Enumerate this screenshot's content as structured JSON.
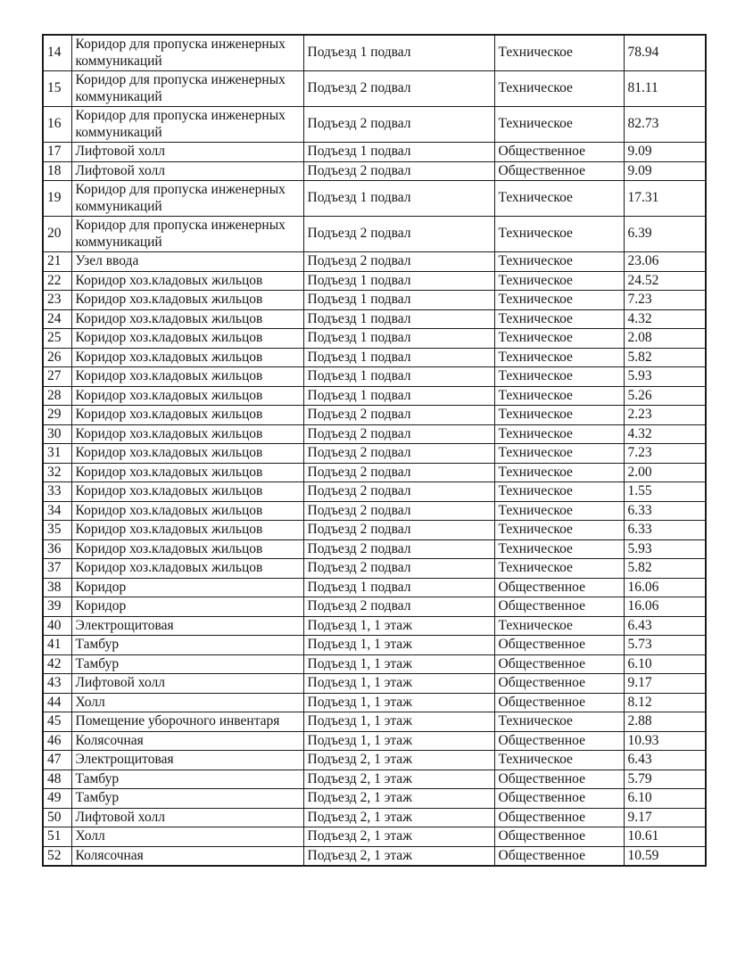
{
  "page": {
    "background": "#ffffff",
    "border_color": "#1b1b1b",
    "text_color": "#151515"
  },
  "table": {
    "rows": [
      [
        "14",
        "Коридор для пропуска инженерных коммуникаций",
        "Подъезд 1 подвал",
        "Техническое",
        "78.94"
      ],
      [
        "15",
        "Коридор для пропуска инженерных коммуникаций",
        "Подъезд 2 подвал",
        "Техническое",
        "81.11"
      ],
      [
        "16",
        "Коридор для пропуска инженерных коммуникаций",
        "Подъезд 2 подвал",
        "Техническое",
        "82.73"
      ],
      [
        "17",
        "Лифтовой холл",
        "Подъезд 1 подвал",
        "Общественное",
        "9.09"
      ],
      [
        "18",
        "Лифтовой холл",
        "Подъезд 2 подвал",
        "Общественное",
        "9.09"
      ],
      [
        "19",
        "Коридор для пропуска инженерных коммуникаций",
        "Подъезд 1 подвал",
        "Техническое",
        "17.31"
      ],
      [
        "20",
        "Коридор для пропуска инженерных коммуникаций",
        "Подъезд 2 подвал",
        "Техническое",
        "6.39"
      ],
      [
        "21",
        "Узел ввода",
        "Подъезд 2 подвал",
        "Техническое",
        "23.06"
      ],
      [
        "22",
        "Коридор хоз.кладовых жильцов",
        "Подъезд 1 подвал",
        "Техническое",
        "24.52"
      ],
      [
        "23",
        "Коридор хоз.кладовых жильцов",
        "Подъезд 1 подвал",
        "Техническое",
        "7.23"
      ],
      [
        "24",
        "Коридор хоз.кладовых жильцов",
        "Подъезд 1 подвал",
        "Техническое",
        "4.32"
      ],
      [
        "25",
        "Коридор хоз.кладовых жильцов",
        "Подъезд 1 подвал",
        "Техническое",
        "2.08"
      ],
      [
        "26",
        "Коридор хоз.кладовых жильцов",
        "Подъезд 1 подвал",
        "Техническое",
        "5.82"
      ],
      [
        "27",
        "Коридор хоз.кладовых жильцов",
        "Подъезд 1 подвал",
        "Техническое",
        "5.93"
      ],
      [
        "28",
        "Коридор хоз.кладовых жильцов",
        "Подъезд 1 подвал",
        "Техническое",
        "5.26"
      ],
      [
        "29",
        "Коридор хоз.кладовых жильцов",
        "Подъезд 2 подвал",
        "Техническое",
        "2.23"
      ],
      [
        "30",
        "Коридор хоз.кладовых жильцов",
        "Подъезд 2 подвал",
        "Техническое",
        "4.32"
      ],
      [
        "31",
        "Коридор хоз.кладовых жильцов",
        "Подъезд 2 подвал",
        "Техническое",
        "7.23"
      ],
      [
        "32",
        "Коридор хоз.кладовых жильцов",
        "Подъезд 2 подвал",
        "Техническое",
        "2.00"
      ],
      [
        "33",
        "Коридор хоз.кладовых жильцов",
        "Подъезд 2 подвал",
        "Техническое",
        "1.55"
      ],
      [
        "34",
        "Коридор хоз.кладовых жильцов",
        "Подъезд 2 подвал",
        "Техническое",
        "6.33"
      ],
      [
        "35",
        "Коридор хоз.кладовых жильцов",
        "Подъезд 2 подвал",
        "Техническое",
        "6.33"
      ],
      [
        "36",
        "Коридор хоз.кладовых жильцов",
        "Подъезд 2 подвал",
        "Техническое",
        "5.93"
      ],
      [
        "37",
        "Коридор хоз.кладовых жильцов",
        "Подъезд 2 подвал",
        "Техническое",
        "5.82"
      ],
      [
        "38",
        "Коридор",
        "Подъезд 1 подвал",
        "Общественное",
        "16.06"
      ],
      [
        "39",
        "Коридор",
        "Подъезд 2 подвал",
        "Общественное",
        "16.06"
      ],
      [
        "40",
        "Электрощитовая",
        "Подъезд 1, 1 этаж",
        "Техническое",
        "6.43"
      ],
      [
        "41",
        "Тамбур",
        "Подъезд 1, 1 этаж",
        "Общественное",
        "5.73"
      ],
      [
        "42",
        "Тамбур",
        "Подъезд 1, 1 этаж",
        "Общественное",
        "6.10"
      ],
      [
        "43",
        "Лифтовой холл",
        "Подъезд 1, 1 этаж",
        "Общественное",
        "9.17"
      ],
      [
        "44",
        "Холл",
        "Подъезд 1, 1 этаж",
        "Общественное",
        "8.12"
      ],
      [
        "45",
        "Помещение уборочного инвентаря",
        "Подъезд 1, 1 этаж",
        "Техническое",
        "2.88"
      ],
      [
        "46",
        "Колясочная",
        "Подъезд 1, 1 этаж",
        "Общественное",
        "10.93"
      ],
      [
        "47",
        "Электрощитовая",
        "Подъезд 2, 1 этаж",
        "Техническое",
        "6.43"
      ],
      [
        "48",
        "Тамбур",
        "Подъезд 2, 1 этаж",
        "Общественное",
        "5.79"
      ],
      [
        "49",
        "Тамбур",
        "Подъезд 2, 1 этаж",
        "Общественное",
        "6.10"
      ],
      [
        "50",
        "Лифтовой холл",
        "Подъезд 2, 1 этаж",
        "Общественное",
        "9.17"
      ],
      [
        "51",
        "Холл",
        "Подъезд 2, 1 этаж",
        "Общественное",
        "10.61"
      ],
      [
        "52",
        "Колясочная",
        "Подъезд 2, 1 этаж",
        "Общественное",
        "10.59"
      ]
    ]
  }
}
